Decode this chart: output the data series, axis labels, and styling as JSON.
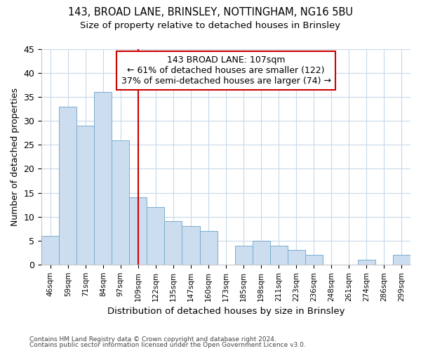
{
  "title1": "143, BROAD LANE, BRINSLEY, NOTTINGHAM, NG16 5BU",
  "title2": "Size of property relative to detached houses in Brinsley",
  "xlabel": "Distribution of detached houses by size in Brinsley",
  "ylabel": "Number of detached properties",
  "categories": [
    "46sqm",
    "59sqm",
    "71sqm",
    "84sqm",
    "97sqm",
    "109sqm",
    "122sqm",
    "135sqm",
    "147sqm",
    "160sqm",
    "173sqm",
    "185sqm",
    "198sqm",
    "211sqm",
    "223sqm",
    "236sqm",
    "248sqm",
    "261sqm",
    "274sqm",
    "286sqm",
    "299sqm"
  ],
  "values": [
    6,
    33,
    29,
    36,
    26,
    14,
    12,
    9,
    8,
    7,
    0,
    4,
    5,
    4,
    3,
    2,
    0,
    0,
    1,
    0,
    2
  ],
  "bar_color": "#ccddf0",
  "bar_edge_color": "#7aadcc",
  "grid_color": "#c8d8e8",
  "vline_x": 5,
  "vline_color": "#cc0000",
  "annotation_text": "143 BROAD LANE: 107sqm\n← 61% of detached houses are smaller (122)\n37% of semi-detached houses are larger (74) →",
  "annotation_box_color": "#ffffff",
  "annotation_box_edge": "#cc0000",
  "ylim": [
    0,
    45
  ],
  "yticks": [
    0,
    5,
    10,
    15,
    20,
    25,
    30,
    35,
    40,
    45
  ],
  "footer1": "Contains HM Land Registry data © Crown copyright and database right 2024.",
  "footer2": "Contains public sector information licensed under the Open Government Licence v3.0.",
  "bg_color": "#ffffff"
}
